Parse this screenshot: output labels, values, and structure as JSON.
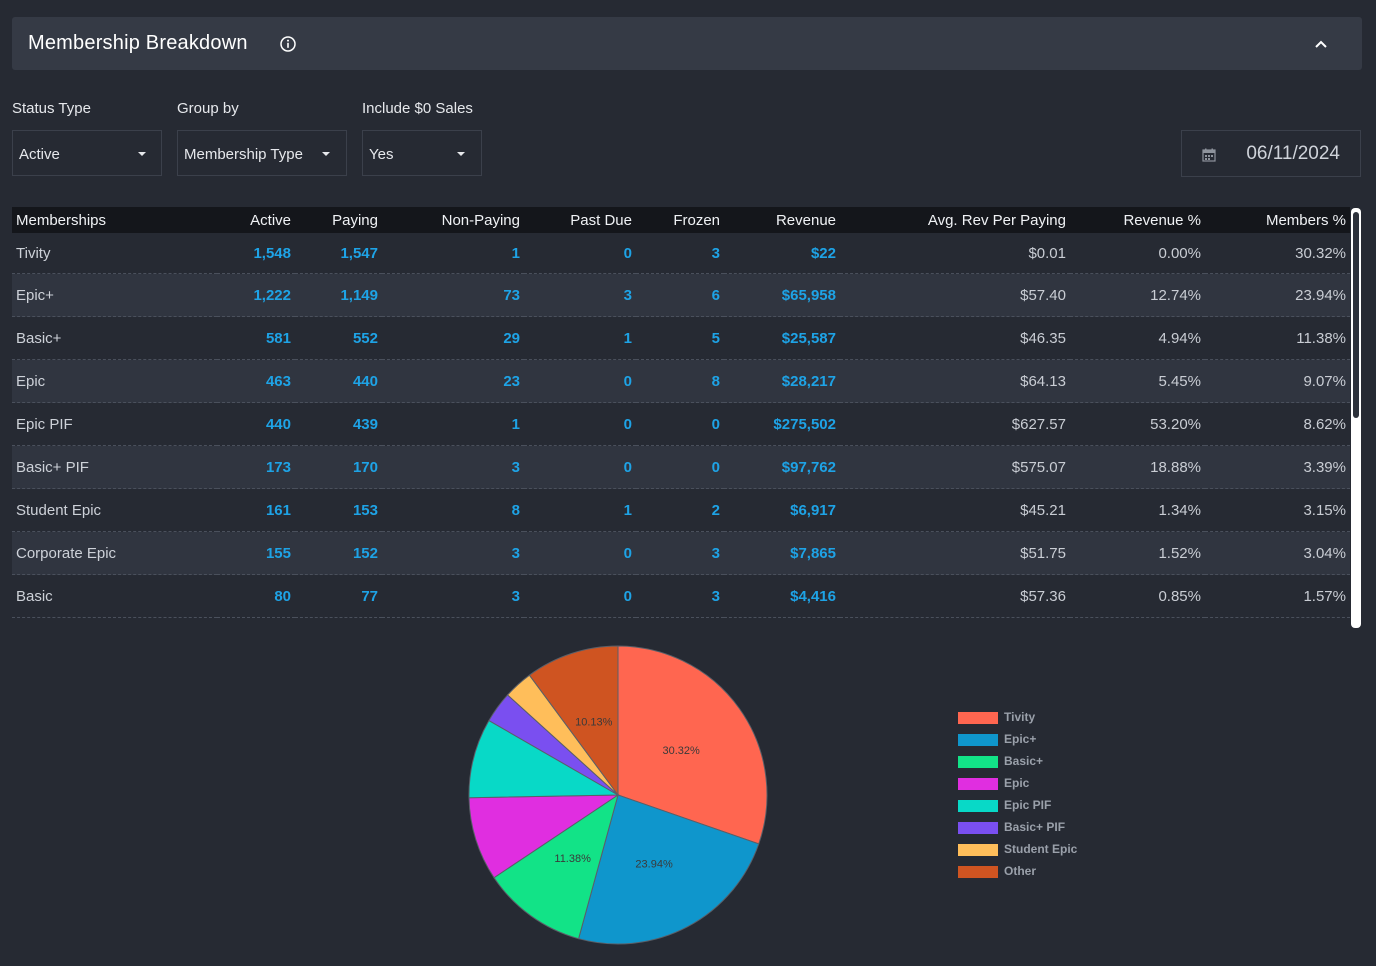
{
  "header": {
    "title": "Membership Breakdown"
  },
  "filters": {
    "status_type": {
      "label": "Status Type",
      "value": "Active"
    },
    "group_by": {
      "label": "Group by",
      "value": "Membership Type"
    },
    "include_zero": {
      "label": "Include $0 Sales",
      "value": "Yes"
    },
    "date": "06/11/2024"
  },
  "table": {
    "columns": [
      "Memberships",
      "Active",
      "Paying",
      "Non-Paying",
      "Past Due",
      "Frozen",
      "Revenue",
      "Avg. Rev Per Paying",
      "Revenue %",
      "Members %"
    ],
    "rows": [
      [
        "Tivity",
        "1,548",
        "1,547",
        "1",
        "0",
        "3",
        "$22",
        "$0.01",
        "0.00%",
        "30.32%"
      ],
      [
        "Epic+",
        "1,222",
        "1,149",
        "73",
        "3",
        "6",
        "$65,958",
        "$57.40",
        "12.74%",
        "23.94%"
      ],
      [
        "Basic+",
        "581",
        "552",
        "29",
        "1",
        "5",
        "$25,587",
        "$46.35",
        "4.94%",
        "11.38%"
      ],
      [
        "Epic",
        "463",
        "440",
        "23",
        "0",
        "8",
        "$28,217",
        "$64.13",
        "5.45%",
        "9.07%"
      ],
      [
        "Epic PIF",
        "440",
        "439",
        "1",
        "0",
        "0",
        "$275,502",
        "$627.57",
        "53.20%",
        "8.62%"
      ],
      [
        "Basic+ PIF",
        "173",
        "170",
        "3",
        "0",
        "0",
        "$97,762",
        "$575.07",
        "18.88%",
        "3.39%"
      ],
      [
        "Student Epic",
        "161",
        "153",
        "8",
        "1",
        "2",
        "$6,917",
        "$45.21",
        "1.34%",
        "3.15%"
      ],
      [
        "Corporate Epic",
        "155",
        "152",
        "3",
        "0",
        "3",
        "$7,865",
        "$51.75",
        "1.52%",
        "3.04%"
      ],
      [
        "Basic",
        "80",
        "77",
        "3",
        "0",
        "3",
        "$4,416",
        "$57.36",
        "0.85%",
        "1.57%"
      ]
    ]
  },
  "chart_data": {
    "type": "pie",
    "categories": [
      "Tivity",
      "Epic+",
      "Basic+",
      "Epic",
      "Epic PIF",
      "Basic+ PIF",
      "Student Epic",
      "Other"
    ],
    "values": [
      30.32,
      23.94,
      11.38,
      9.07,
      8.62,
      3.39,
      3.15,
      10.13
    ],
    "data_labels": [
      "30.32%",
      "23.94%",
      "11.38%",
      "",
      "",
      "",
      "",
      "10.13%"
    ],
    "colors": [
      "#ff6650",
      "#0f96cc",
      "#12e387",
      "#e02ee0",
      "#08d9c7",
      "#7a4ff0",
      "#ffbe5a",
      "#cf5421"
    ],
    "legend_position": "right"
  }
}
